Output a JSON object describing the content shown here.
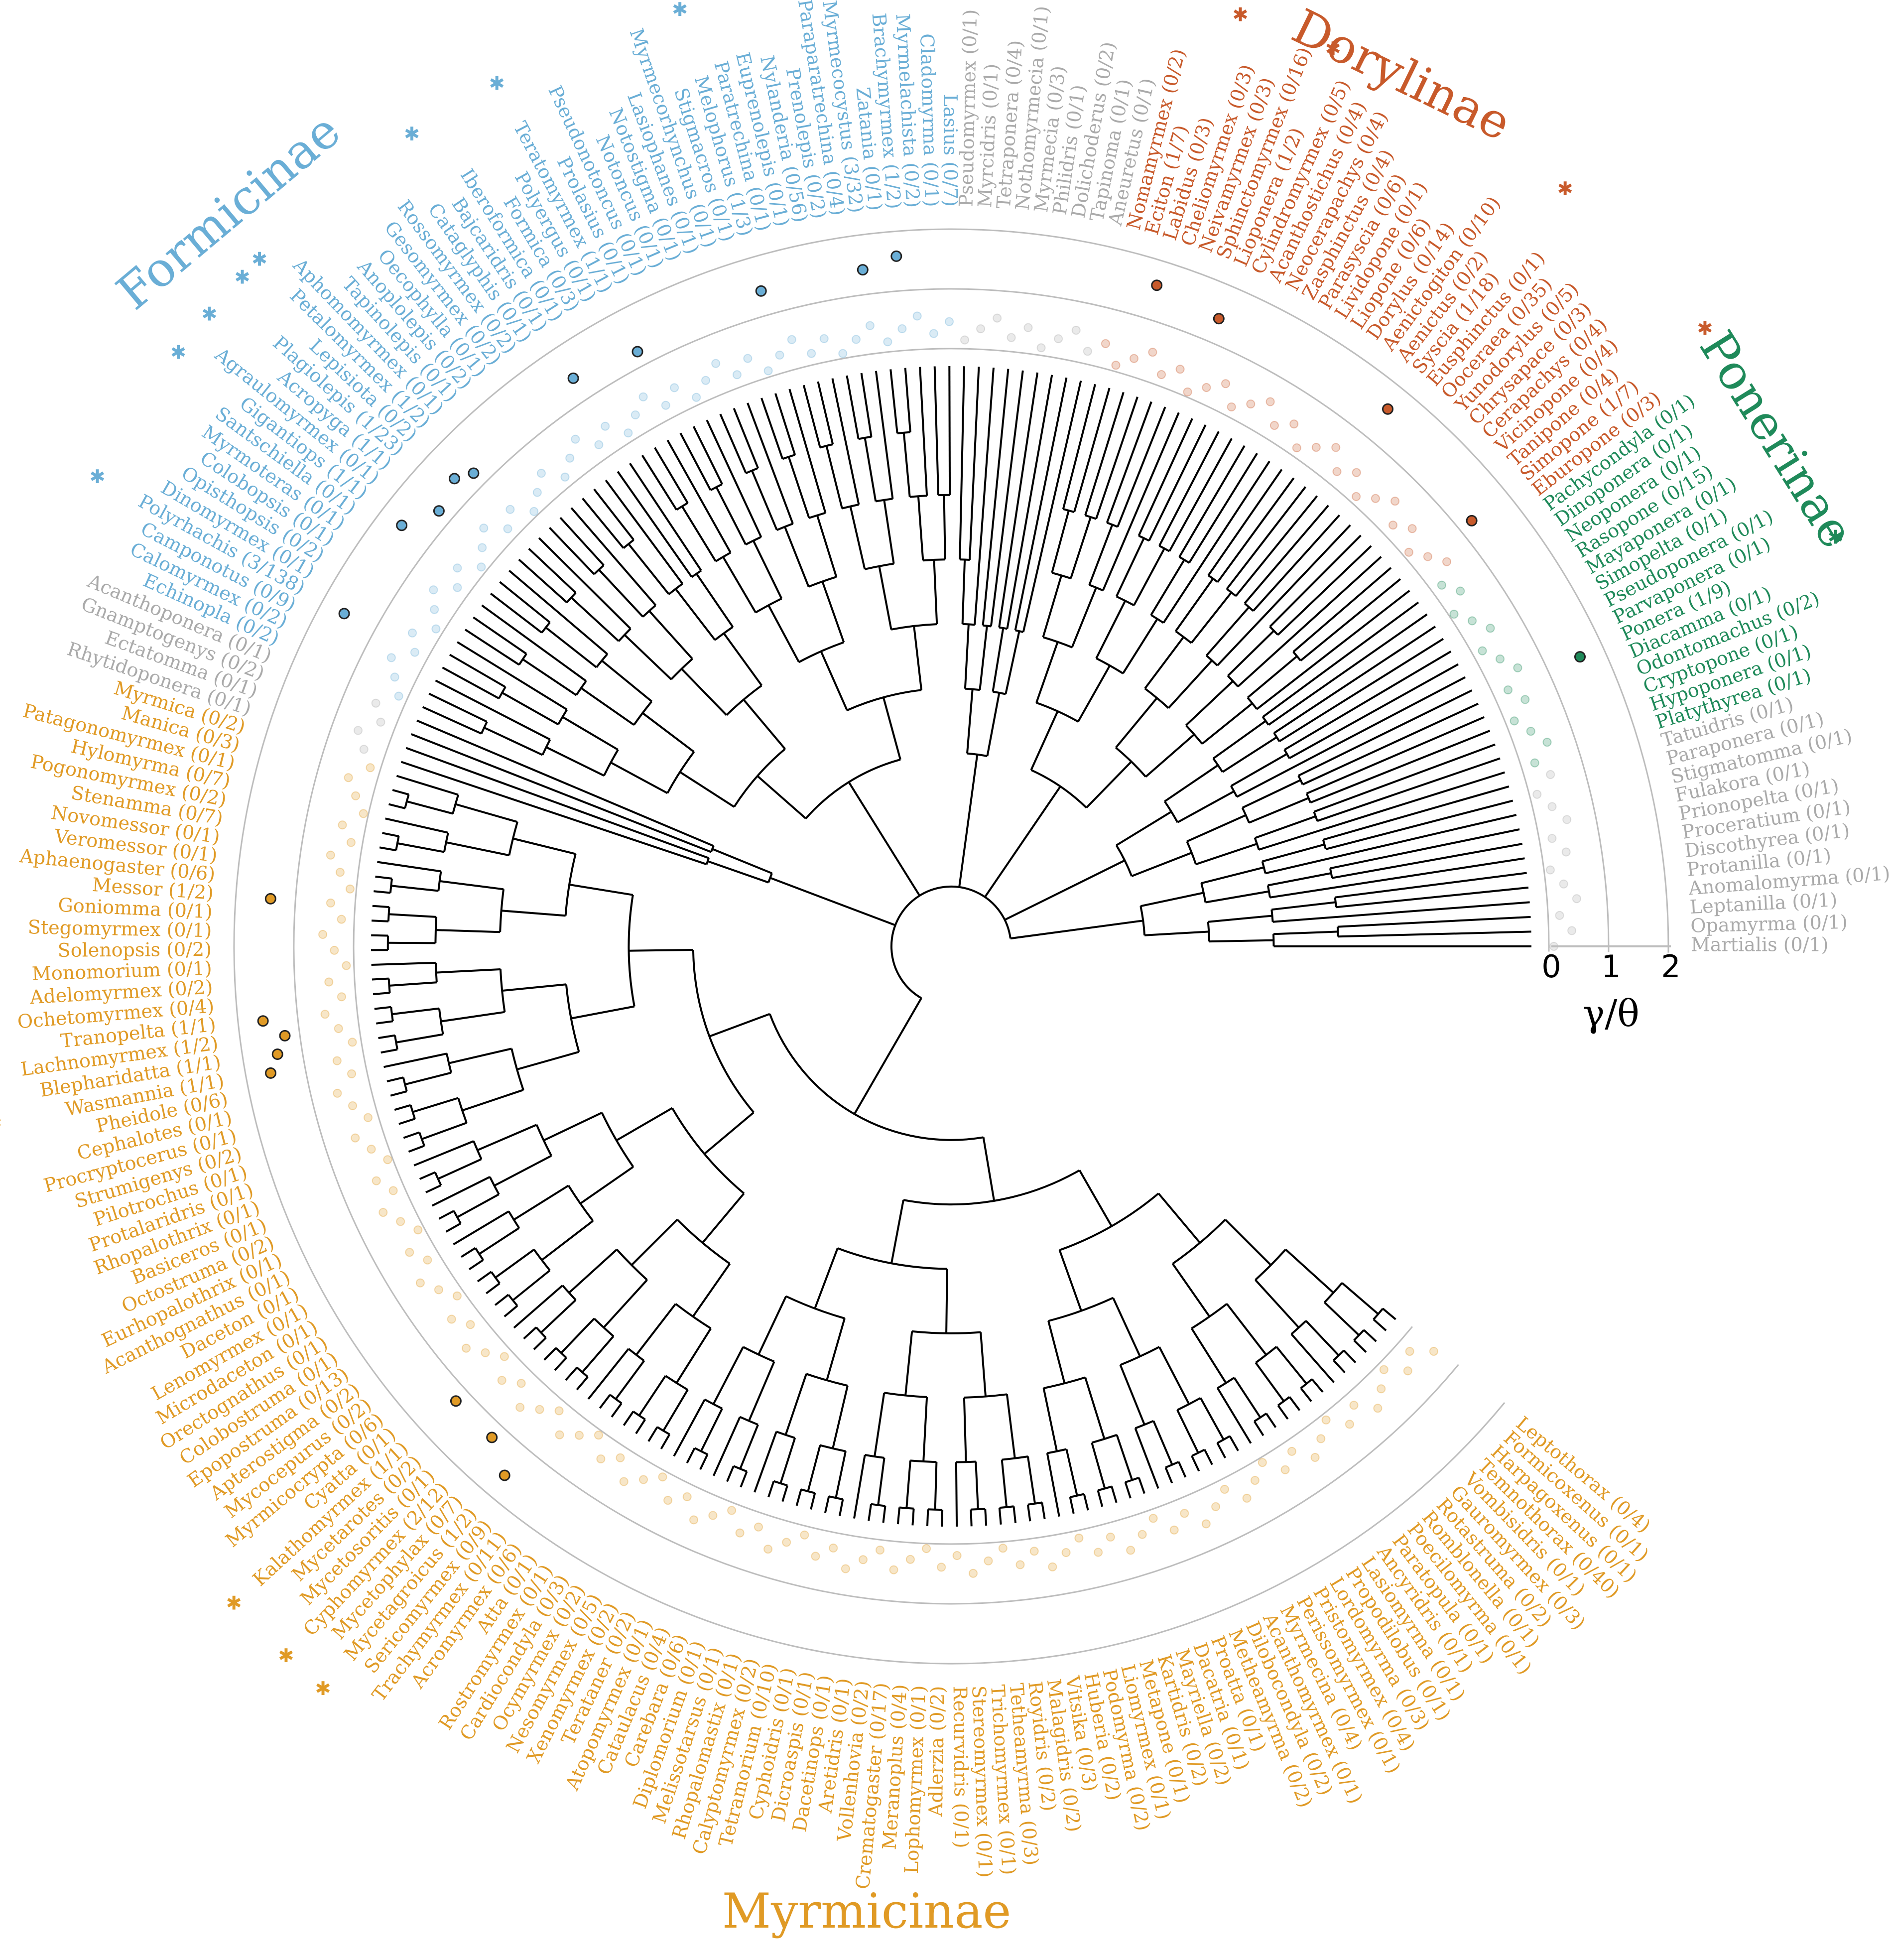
{
  "colors": {
    "Formicinae": "#6aaed6",
    "Dorylinae": "#c85a2b",
    "Ponerinae": "#1f8a5a",
    "Myrmicinae": "#e09a25",
    "other": "#aaaaaa",
    "branch": "#000000",
    "ring": "#bdbdbd"
  },
  "subfamily_labels": [
    {
      "key": "Formicinae",
      "text": "Formicinae"
    },
    {
      "key": "Dorylinae",
      "text": "Dorylinae"
    },
    {
      "key": "Ponerinae",
      "text": "Ponerinae"
    },
    {
      "key": "Myrmicinae",
      "text": "Myrmicinae"
    }
  ],
  "axis": {
    "ticks": [
      "0",
      "1",
      "2"
    ],
    "title": "γ/θ"
  },
  "groups": [
    {
      "key": "other",
      "tips": [
        {
          "t": "Martialis (0/1)"
        },
        {
          "t": "Opamyrma (0/1)"
        },
        {
          "t": "Leptanilla (0/1)"
        },
        {
          "t": "Anomalomyrma (0/1)"
        },
        {
          "t": "Protanilla (0/1)"
        },
        {
          "t": "Discothyrea (0/1)"
        },
        {
          "t": "Proceratium (0/1)"
        },
        {
          "t": "Prionopelta (0/1)"
        },
        {
          "t": "Fulakora (0/1)"
        },
        {
          "t": "Stigmatomma (0/1)"
        },
        {
          "t": "Paraponera (0/1)"
        },
        {
          "t": "Tatuidris (0/1)"
        }
      ]
    },
    {
      "key": "Ponerinae",
      "tips": [
        {
          "t": "Platythyrea (0/1)"
        },
        {
          "t": "Hypoponera (0/1)"
        },
        {
          "t": "Cryptopone (0/1)"
        },
        {
          "t": "Odontomachus (0/2)"
        },
        {
          "t": "Diacamma (0/1)"
        },
        {
          "t": "Ponera (1/9)",
          "star": true
        },
        {
          "t": "Parvaponera (0/1)"
        },
        {
          "t": "Pseudoponera (0/1)"
        },
        {
          "t": "Simopelta (0/1)"
        },
        {
          "t": "Mayaponera (0/1)"
        },
        {
          "t": "Rasopone (0/15)"
        },
        {
          "t": "Neoponera (0/1)"
        },
        {
          "t": "Dinoponera (0/1)"
        },
        {
          "t": "Pachycondyla (0/1)"
        }
      ]
    },
    {
      "key": "Dorylinae",
      "tips": [
        {
          "t": "Eburopone (0/3)"
        },
        {
          "t": "Simopone (1/7)",
          "star": true
        },
        {
          "t": "Tanipone (0/4)"
        },
        {
          "t": "Vicinopone (0/4)"
        },
        {
          "t": "Cerapachys (0/4)"
        },
        {
          "t": "Chrysapace (0/3)"
        },
        {
          "t": "Yunodorylus (0/5)"
        },
        {
          "t": "Ooceraea (0/35)"
        },
        {
          "t": "Eusphinctus (0/1)"
        },
        {
          "t": "Syscia (1/18)",
          "star": true
        },
        {
          "t": "Aenictus (0/2)"
        },
        {
          "t": "Aenictogiton (0/10)"
        },
        {
          "t": "Dorylus (0/14)"
        },
        {
          "t": "Liopone (0/6)"
        },
        {
          "t": "Lividopone (0/1)"
        },
        {
          "t": "Parasyscia (0/6)"
        },
        {
          "t": "Zasphinctus (0/4)"
        },
        {
          "t": "Neocerapachys (0/4)"
        },
        {
          "t": "Acanthostichus (0/4)"
        },
        {
          "t": "Cylindromyrmex (0/5)"
        },
        {
          "t": "Lioponera (1/2)",
          "star": true
        },
        {
          "t": "Sphinctomyrmex (0/16)"
        },
        {
          "t": "Neivamyrmex (0/3)"
        },
        {
          "t": "Cheliomyrmex (0/3)"
        },
        {
          "t": "Labidus (0/3)",
          "star": true
        },
        {
          "t": "Eciton (1/7)"
        },
        {
          "t": "Nomamyrmex (0/2)"
        }
      ]
    },
    {
      "key": "other",
      "tips": [
        {
          "t": "Aneuretus (0/1)"
        },
        {
          "t": "Tapinoma (0/1)"
        },
        {
          "t": "Dolichoderus (0/2)"
        },
        {
          "t": "Philidris (0/1)"
        },
        {
          "t": "Myrmecia (0/3)"
        },
        {
          "t": "Nothomyrmecia (0/1)"
        },
        {
          "t": "Tetraponera (0/4)"
        },
        {
          "t": "Myrcidris (0/1)"
        },
        {
          "t": "Pseudomyrmex (0/1)"
        }
      ]
    },
    {
      "key": "Formicinae",
      "tips": [
        {
          "t": "Lasius (0/7)"
        },
        {
          "t": "Cladomyrma (0/1)"
        },
        {
          "t": "Myrmelachista (0/2)"
        },
        {
          "t": "Brachymyrmex (1/2)",
          "star": true
        },
        {
          "t": "Zatania (0/1)"
        },
        {
          "t": "Myrmecocystus (3/32)",
          "star": true
        },
        {
          "t": "Paraparatrechina (0/4)"
        },
        {
          "t": "Prenolepis (0/2)"
        },
        {
          "t": "Nylanderia (0/56)"
        },
        {
          "t": "Euprenolepis (0/1)"
        },
        {
          "t": "Paratrechina (0/1)"
        },
        {
          "t": "Melophorus (1/3)",
          "star": true
        },
        {
          "t": "Stigmacros (0/1)"
        },
        {
          "t": "Myrmecorhynchus (0/1)"
        },
        {
          "t": "Lasiophanes (0/1)"
        },
        {
          "t": "Notostigma (0/1)"
        },
        {
          "t": "Notoncus (0/1)"
        },
        {
          "t": "Pseudonotoncus (0/1)"
        },
        {
          "t": "Prolasius (0/1)"
        },
        {
          "t": "Teratomyrmex (1/1)",
          "star": true
        },
        {
          "t": "Polyergus (0/1)"
        },
        {
          "t": "Formica (0/3)"
        },
        {
          "t": "Iberoformica (0/1)"
        },
        {
          "t": "Bajcaridris (0/1)",
          "star": true
        },
        {
          "t": "Cataglyphis (0/1)"
        },
        {
          "t": "Rossomyrmex (0/2)"
        },
        {
          "t": "Gesomyrmex (0/2)"
        },
        {
          "t": "Oecophylla (0/1)"
        },
        {
          "t": "Anoplolepis (0/2)"
        },
        {
          "t": "Tapinolepis (0/1)"
        },
        {
          "t": "Aphomomyrmex (0/1)"
        },
        {
          "t": "Petalomyrmex (1/2)",
          "star": true
        },
        {
          "t": "Lepisiota (0/2)",
          "star": true
        },
        {
          "t": "Plagiolepis (1/23)"
        },
        {
          "t": "Acropyga (1/1)",
          "star": true
        },
        {
          "t": "Agraulomyrmex (0/1)"
        },
        {
          "t": "Gigantiops (1/1)",
          "star": true
        },
        {
          "t": "Santschiella (0/1)"
        },
        {
          "t": "Myrmoteras (0/1)"
        },
        {
          "t": "Colobopsis (0/1)"
        },
        {
          "t": "Opisthopsis (0/2)"
        },
        {
          "t": "Dinomyrmex (0/1)"
        },
        {
          "t": "Polyrhachis (3/138)",
          "star": true
        },
        {
          "t": "Camponotus (0/9)"
        },
        {
          "t": "Calomyrmex (0/2)"
        },
        {
          "t": "Echinopla (0/2)"
        }
      ]
    },
    {
      "key": "other",
      "tips": [
        {
          "t": "Acanthoponera (0/1)"
        },
        {
          "t": "Gnamptogenys (0/2)"
        },
        {
          "t": "Ectatomma (0/1)"
        },
        {
          "t": "Rhytidoponera (0/1)"
        }
      ]
    },
    {
      "key": "Myrmicinae",
      "tips": [
        {
          "t": "Myrmica (0/2)"
        },
        {
          "t": "Manica (0/3)"
        },
        {
          "t": "Patagonomyrmex (0/1)"
        },
        {
          "t": "Hylomyrma (0/7)"
        },
        {
          "t": "Pogonomyrmex (0/2)"
        },
        {
          "t": "Stenamma (0/7)"
        },
        {
          "t": "Novomessor (0/1)"
        },
        {
          "t": "Veromessor (0/1)"
        },
        {
          "t": "Aphaenogaster (0/6)"
        },
        {
          "t": "Messor (1/2)",
          "star": true
        },
        {
          "t": "Goniomma (0/1)"
        },
        {
          "t": "Stegomyrmex (0/1)"
        },
        {
          "t": "Solenopsis (0/2)"
        },
        {
          "t": "Monomorium (0/1)"
        },
        {
          "t": "Adelomyrmex (0/2)"
        },
        {
          "t": "Ochetomyrmex (0/4)"
        },
        {
          "t": "Tranopelta (1/1)",
          "star": true
        },
        {
          "t": "Lachnomyrmex (1/2)",
          "star": true
        },
        {
          "t": "Blepharidatta (1/1)",
          "star": true
        },
        {
          "t": "Wasmannia (1/1)",
          "star": true
        },
        {
          "t": "Pheidole (0/6)"
        },
        {
          "t": "Cephalotes (0/1)"
        },
        {
          "t": "Procryptocerus (0/1)"
        },
        {
          "t": "Strumigenys (0/2)"
        },
        {
          "t": "Pilotrochus (0/1)"
        },
        {
          "t": "Protalaridris (0/1)"
        },
        {
          "t": "Rhopalothrix (0/1)"
        },
        {
          "t": "Basiceros (0/1)"
        },
        {
          "t": "Octostruma (0/2)"
        },
        {
          "t": "Eurhopalothrix (0/1)"
        },
        {
          "t": "Acanthognathus (0/1)"
        },
        {
          "t": "Daceton (0/1)"
        },
        {
          "t": "Lenomyrmex (0/1)"
        },
        {
          "t": "Microdaceton (0/1)"
        },
        {
          "t": "Orectognathus (0/1)"
        },
        {
          "t": "Colobostruma (0/1)"
        },
        {
          "t": "Epopostruma (0/13)"
        },
        {
          "t": "Apterostigma (0/2)"
        },
        {
          "t": "Mycocepurus (0/2)"
        },
        {
          "t": "Myrmicocrypta (0/6)"
        },
        {
          "t": "Cyatta (0/1)"
        },
        {
          "t": "Kalathomyrmex (1/1)",
          "star": true
        },
        {
          "t": "Mycetarotes (0/2)"
        },
        {
          "t": "Mycetosoritis (0/1)"
        },
        {
          "t": "Cyphomyrmex (2/12)",
          "star": true
        },
        {
          "t": "Mycetophylax (0/7)"
        },
        {
          "t": "Mycetagroicus (1/2)",
          "star": true
        },
        {
          "t": "Sericomyrmex (0/9)"
        },
        {
          "t": "Trachymyrmex (0/11)"
        },
        {
          "t": "Acromyrmex (0/6)"
        },
        {
          "t": "Atta (0/1)"
        },
        {
          "t": "Rostromyrmex (0/1)"
        },
        {
          "t": "Cardiocondyla (0/3)"
        },
        {
          "t": "Ocymyrmex (0/2)"
        },
        {
          "t": "Nesomyrmex (0/5)"
        },
        {
          "t": "Xenomyrmex (0/2)"
        },
        {
          "t": "Terataner (0/2)"
        },
        {
          "t": "Atopomyrmex (0/1)"
        },
        {
          "t": "Cataulacus (0/4)"
        },
        {
          "t": "Carebara (0/6)"
        },
        {
          "t": "Diplomorium (0/1)"
        },
        {
          "t": "Melissotarsus (0/1)"
        },
        {
          "t": "Rhopalomastix (0/1)"
        },
        {
          "t": "Calyptomyrmex (0/2)"
        },
        {
          "t": "Tetramorium (0/10)"
        },
        {
          "t": "Cyphoidris (0/1)"
        },
        {
          "t": "Dicroaspis (0/1)"
        },
        {
          "t": "Dacetinops (0/1)"
        },
        {
          "t": "Aretidris (0/1)"
        },
        {
          "t": "Vollenhovia (0/2)"
        },
        {
          "t": "Crematogaster (0/17)"
        },
        {
          "t": "Meranoplus (0/4)"
        },
        {
          "t": "Lophomyrmex (0/1)"
        },
        {
          "t": "Adlerzia (0/2)"
        },
        {
          "t": "Recurvidris (0/1)"
        },
        {
          "t": "Stereomyrmex (0/1)"
        },
        {
          "t": "Trichomyrmex (0/1)"
        },
        {
          "t": "Tetheamyrma (0/3)"
        },
        {
          "t": "Royidris (0/2)"
        },
        {
          "t": "Malagidris (0/2)"
        },
        {
          "t": "Vitsika (0/3)"
        },
        {
          "t": "Huberia (0/2)"
        },
        {
          "t": "Podomyrma (0/2)"
        },
        {
          "t": "Liomyrmex (0/1)"
        },
        {
          "t": "Metapone (0/1)"
        },
        {
          "t": "Kartidris (0/2)"
        },
        {
          "t": "Mayriella (0/2)"
        },
        {
          "t": "Dacatria (0/1)"
        },
        {
          "t": "Proatta (0/1)"
        },
        {
          "t": "Metheamyrma (0/2)"
        },
        {
          "t": "Dilobocondyla (0/2)"
        },
        {
          "t": "Acanthomyrmex (0/1)"
        },
        {
          "t": "Myrmecina (0/4)"
        },
        {
          "t": "Perissomyrmex (0/1)"
        },
        {
          "t": "Pristomyrmex (0/4)"
        },
        {
          "t": "Lordomyrma (0/3)"
        },
        {
          "t": "Propodilobus (0/1)"
        },
        {
          "t": "Lasiomyrma (0/1)"
        },
        {
          "t": "Ancyridris (0/1)"
        },
        {
          "t": "Paratopula (0/1)"
        },
        {
          "t": "Poecilomyrma (0/1)"
        },
        {
          "t": "Romblonella (0/1)"
        },
        {
          "t": "Rotastruma (0/2)"
        },
        {
          "t": "Gauromyrmex (0/3)"
        },
        {
          "t": "Vombisidris (0/1)"
        },
        {
          "t": "Temnothorax (0/40)"
        },
        {
          "t": "Harpagoxenus (0/1)"
        },
        {
          "t": "Formicoxenus (0/1)"
        },
        {
          "t": "Leptothorax (0/4)"
        }
      ]
    }
  ]
}
